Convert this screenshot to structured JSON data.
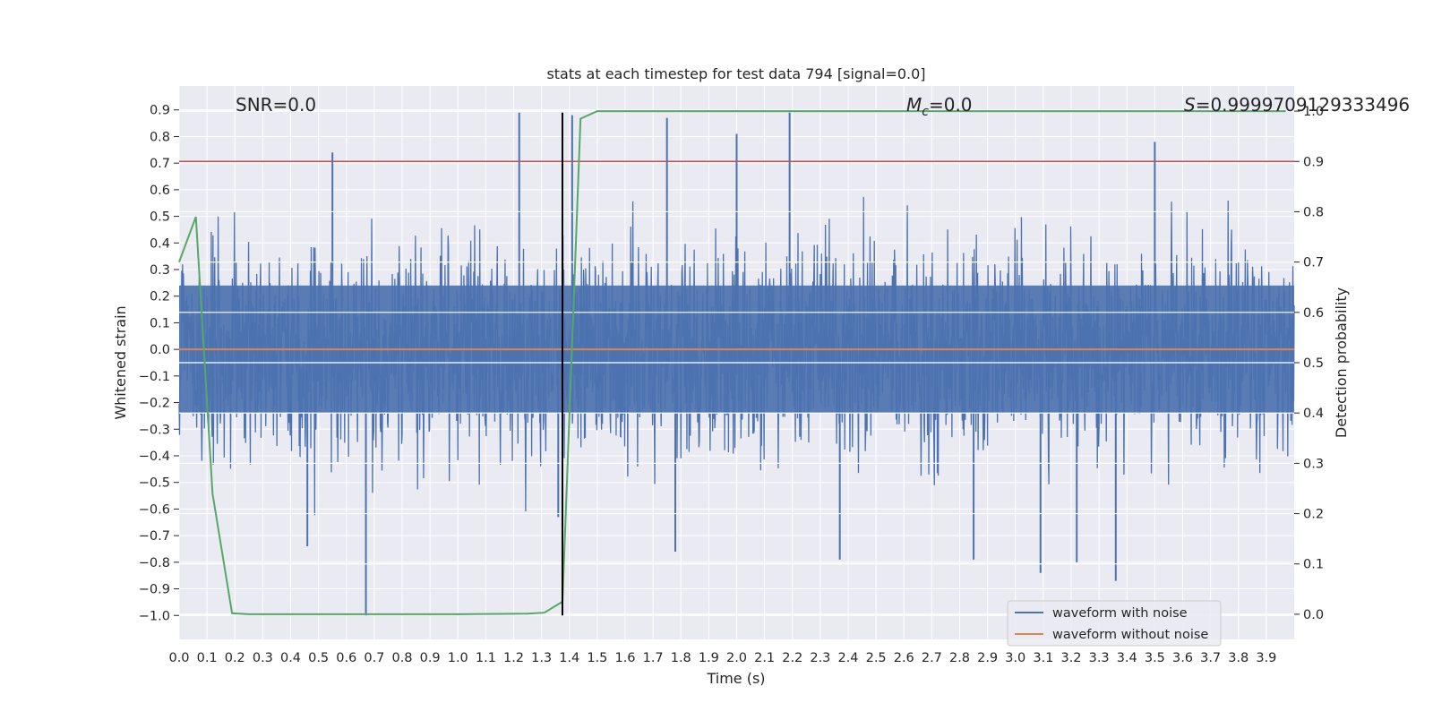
{
  "chart_data": {
    "type": "line",
    "title": "stats at each timestep for test data 794 [signal=0.0]",
    "xlabel": "Time (s)",
    "ylabel": "Whitened strain",
    "ylabel_right": "Detection probability",
    "xlim": [
      0.0,
      4.0
    ],
    "ylim": [
      -1.09,
      0.99
    ],
    "ylim_right": [
      -0.05,
      1.05
    ],
    "x_ticks": [
      "0.0",
      "0.1",
      "0.2",
      "0.3",
      "0.4",
      "0.5",
      "0.6",
      "0.7",
      "0.8",
      "0.9",
      "1.0",
      "1.1",
      "1.2",
      "1.3",
      "1.4",
      "1.5",
      "1.6",
      "1.7",
      "1.8",
      "1.9",
      "2.0",
      "2.1",
      "2.2",
      "2.3",
      "2.4",
      "2.5",
      "2.6",
      "2.7",
      "2.8",
      "2.9",
      "3.0",
      "3.1",
      "3.2",
      "3.3",
      "3.4",
      "3.5",
      "3.6",
      "3.7",
      "3.8",
      "3.9"
    ],
    "y_ticks": [
      "0.9",
      "0.8",
      "0.7",
      "0.6",
      "0.5",
      "0.4",
      "0.3",
      "0.2",
      "0.1",
      "0.0",
      "−0.1",
      "−0.2",
      "−0.3",
      "−0.4",
      "−0.5",
      "−0.6",
      "−0.7",
      "−0.8",
      "−0.9",
      "−1.0"
    ],
    "y_right_ticks": [
      "1.0",
      "0.9",
      "0.8",
      "0.7",
      "0.6",
      "0.5",
      "0.4",
      "0.3",
      "0.2",
      "0.1",
      "0.0"
    ],
    "annotations": {
      "snr": "SNR=0.0",
      "mc_symbol": "M",
      "mc_sub": "c",
      "mc_value": "=0.0",
      "s_symbol": "S",
      "s_value": "=0.9999709129333496"
    },
    "threshold_line": {
      "y_right": 0.9,
      "color": "#c44e52"
    },
    "marker_line": {
      "x": 1.375,
      "y_range": [
        -1.0,
        0.89
      ],
      "color": "#000000"
    },
    "series": [
      {
        "name": "waveform with noise",
        "color": "#4c72b0",
        "envelope_min": -1.0,
        "envelope_max": 0.89,
        "spikes": [
          {
            "x": 0.67,
            "y": -1.0
          },
          {
            "x": 1.22,
            "y": 0.89
          },
          {
            "x": 2.19,
            "y": 0.89
          },
          {
            "x": 0.55,
            "y": 0.74
          },
          {
            "x": 1.75,
            "y": 0.87
          },
          {
            "x": 2.0,
            "y": 0.81
          },
          {
            "x": 3.5,
            "y": 0.78
          },
          {
            "x": 3.36,
            "y": -0.87
          },
          {
            "x": 3.09,
            "y": -0.84
          },
          {
            "x": 0.46,
            "y": -0.74
          },
          {
            "x": 2.85,
            "y": -0.79
          },
          {
            "x": 3.22,
            "y": -0.8
          },
          {
            "x": 1.78,
            "y": -0.76
          },
          {
            "x": 2.37,
            "y": -0.79
          },
          {
            "x": 1.41,
            "y": 0.88
          },
          {
            "x": 1.36,
            "y": -0.63
          }
        ]
      },
      {
        "name": "waveform without noise",
        "color": "#dd8452",
        "x": [
          0.0,
          4.0
        ],
        "y": [
          0.0,
          0.0
        ]
      },
      {
        "name": "detection probability",
        "color": "#55a868",
        "axis": "right",
        "x": [
          0.0,
          0.06,
          0.12,
          0.19,
          0.25,
          0.31,
          0.5,
          1.0,
          1.25,
          1.31,
          1.375,
          1.44,
          1.5,
          1.6,
          2.0,
          3.0,
          3.97
        ],
        "y": [
          0.7,
          0.79,
          0.24,
          0.002,
          0.0,
          0.0,
          0.0,
          0.0,
          0.001,
          0.003,
          0.025,
          0.985,
          1.0,
          1.0,
          1.0,
          1.0,
          1.0
        ]
      }
    ],
    "legend": {
      "placement": "lower-right",
      "entries": [
        "waveform with noise",
        "waveform without noise"
      ]
    },
    "grid": true
  },
  "colors": {
    "plot_background": "#eaeaf2",
    "grid": "#ffffff",
    "text": "#262626"
  }
}
